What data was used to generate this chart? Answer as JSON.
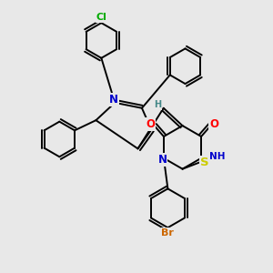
{
  "bg_color": "#e8e8e8",
  "bond_color": "#000000",
  "bond_width": 1.4,
  "atom_colors": {
    "N": "#0000cc",
    "O": "#ff0000",
    "S": "#cccc00",
    "Cl": "#00aa00",
    "Br": "#cc6600",
    "H": "#448888",
    "C": "#000000"
  },
  "font_size": 7.5,
  "fig_size": [
    3.0,
    3.0
  ],
  "dpi": 100
}
